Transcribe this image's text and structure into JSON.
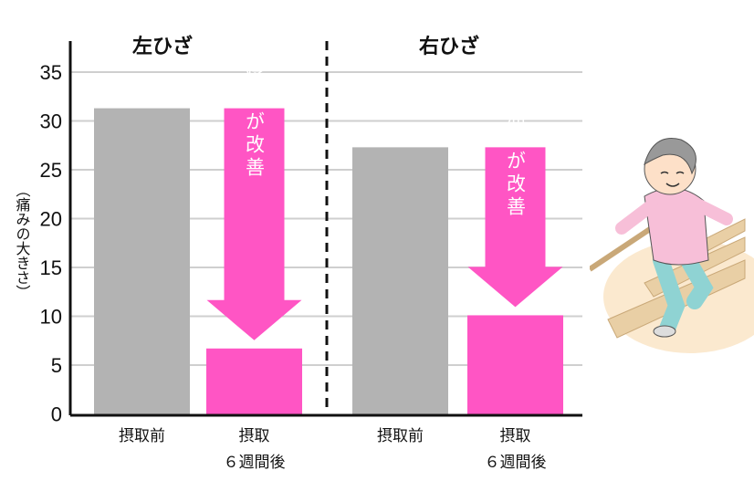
{
  "chart_data": {
    "type": "bar",
    "ylabel": "（痛みの大きさ）",
    "ylim": [
      0,
      35
    ],
    "yticks": [
      0,
      5,
      10,
      15,
      20,
      25,
      30,
      35
    ],
    "grid": true,
    "panels": [
      {
        "title": "左ひざ",
        "categories": [
          "摂取前",
          "摂取\n６週間後"
        ],
        "values": [
          31.3,
          6.7
        ],
        "colors": [
          "#b3b3b3",
          "#ff55c4"
        ],
        "annotation": "痛みが改善"
      },
      {
        "title": "右ひざ",
        "categories": [
          "摂取前",
          "摂取\n６週間後"
        ],
        "values": [
          27.3,
          10.1
        ],
        "colors": [
          "#b3b3b3",
          "#ff55c4"
        ],
        "annotation": "痛みが改善"
      }
    ]
  },
  "illustration": "elderly-woman-walking-down-stairs"
}
